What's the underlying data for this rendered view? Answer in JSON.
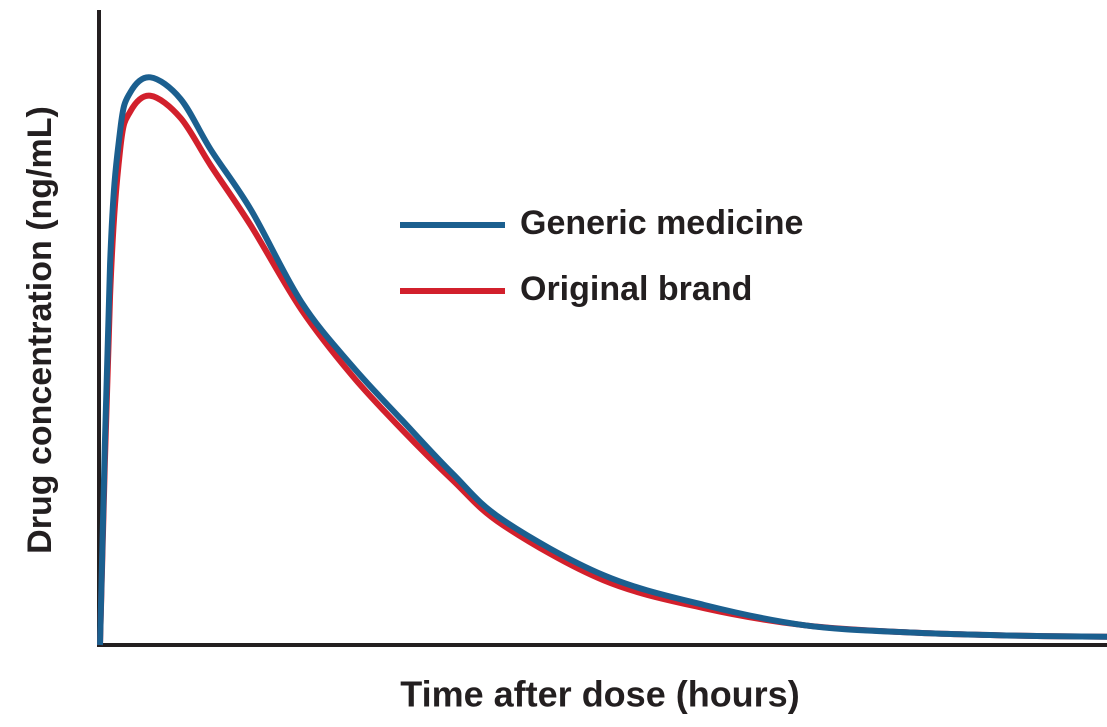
{
  "chart_data": {
    "type": "line",
    "xlabel": "Time after dose (hours)",
    "ylabel": "Drug concentration (ng/mL)",
    "x": [
      0,
      1,
      2,
      3,
      5,
      8,
      11,
      15,
      20,
      25,
      30,
      35,
      40,
      50,
      60,
      70,
      80,
      90,
      100
    ],
    "series": [
      {
        "name": "Generic medicine",
        "color": "#1b5f8f",
        "values": [
          0,
          60,
          81,
          87,
          89.4,
          86,
          78,
          68.5,
          54,
          44,
          35.4,
          27,
          19.7,
          11,
          6.3,
          3.1,
          2,
          1.5,
          1.3
        ]
      },
      {
        "name": "Original brand",
        "color": "#d2202c",
        "values": [
          0,
          55,
          78,
          84,
          86.5,
          83,
          75.5,
          66,
          52.8,
          42.5,
          33.9,
          26,
          18.9,
          10.2,
          5.8,
          3.1,
          2,
          1.5,
          1.3
        ]
      }
    ],
    "xlim": [
      0,
      100
    ],
    "ylim": [
      0,
      100
    ]
  }
}
